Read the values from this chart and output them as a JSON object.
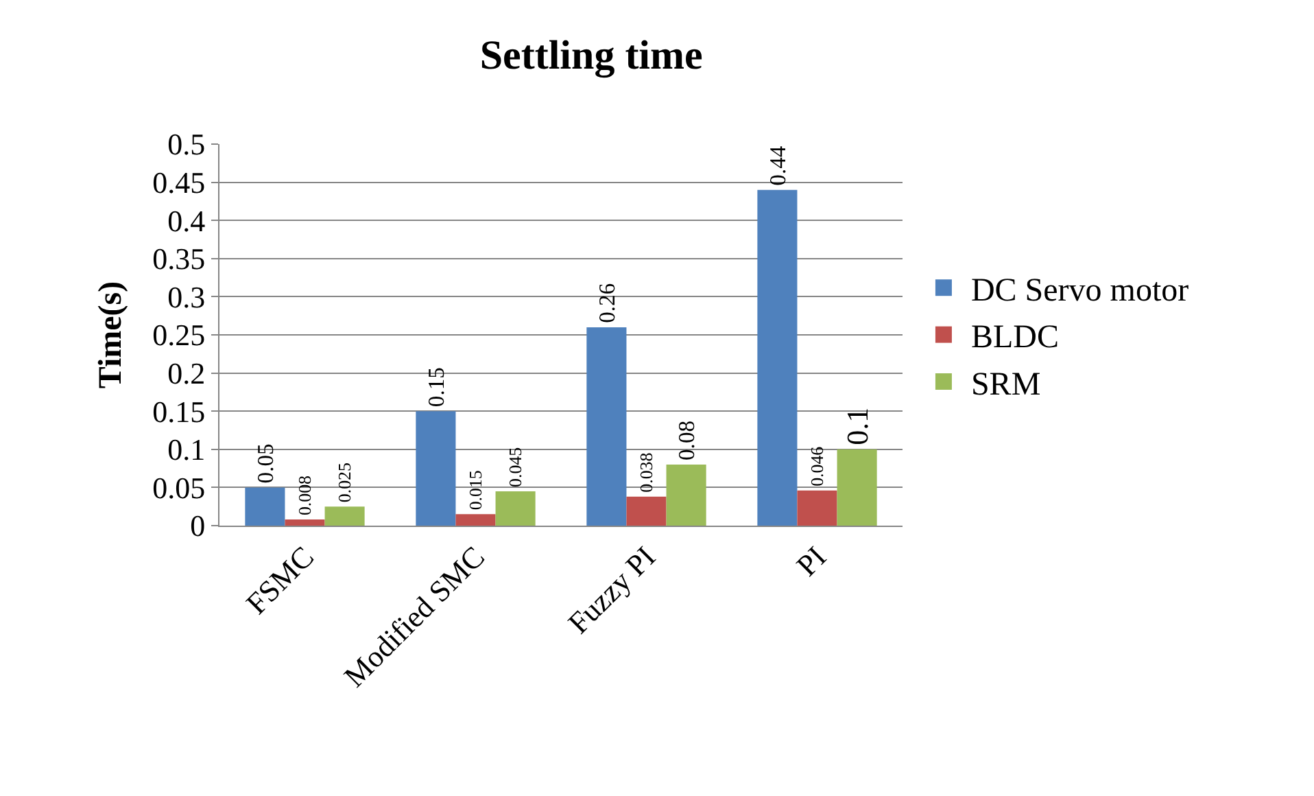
{
  "chart_data": {
    "type": "bar",
    "title": "Settling time",
    "ylabel": "Time(s)",
    "categories": [
      "FSMC",
      "Modified SMC",
      "Fuzzy PI",
      "PI"
    ],
    "series": [
      {
        "name": "DC Servo motor",
        "color": "#4f81bd",
        "values": [
          0.05,
          0.15,
          0.26,
          0.44
        ]
      },
      {
        "name": "BLDC",
        "color": "#c0504d",
        "values": [
          0.008,
          0.015,
          0.038,
          0.046
        ]
      },
      {
        "name": "SRM",
        "color": "#9bbb59",
        "values": [
          0.025,
          0.045,
          0.08,
          0.1
        ]
      }
    ],
    "ylim": [
      0,
      0.5
    ],
    "yticks": [
      0,
      0.05,
      0.1,
      0.15,
      0.2,
      0.25,
      0.3,
      0.35,
      0.4,
      0.45,
      0.5
    ],
    "grid": "y",
    "legend": "right",
    "data_labels": true
  }
}
